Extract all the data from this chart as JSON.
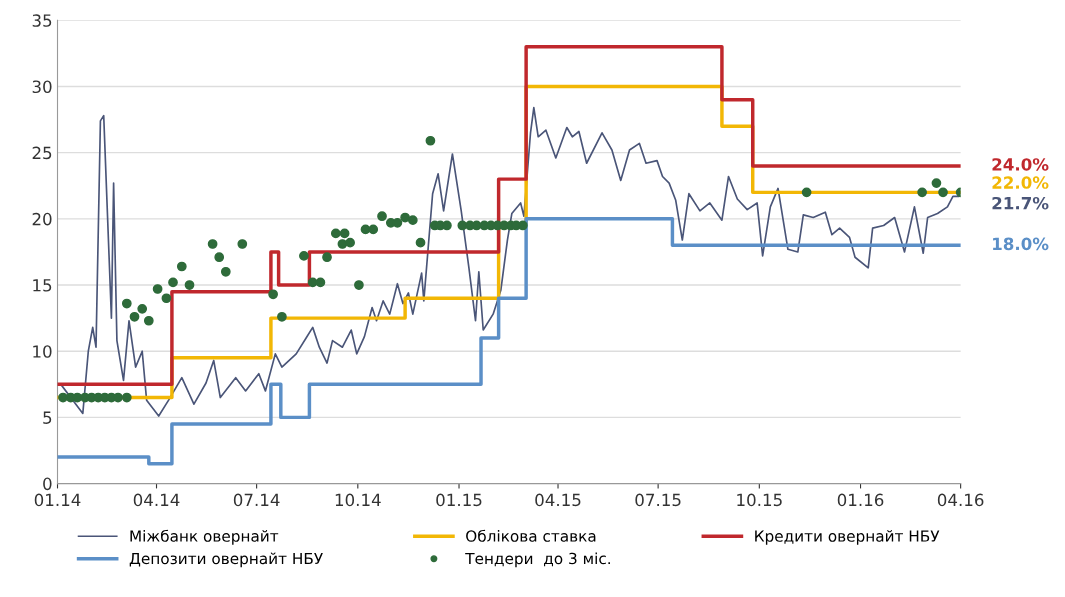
{
  "chart_data": {
    "type": "line",
    "xlim": [
      "2014-01",
      "2016-04"
    ],
    "ylim": [
      0,
      35
    ],
    "xticks": [
      {
        "value": "2014-01",
        "label": "01.14"
      },
      {
        "value": "2014-04",
        "label": "04.14"
      },
      {
        "value": "2014-07",
        "label": "07.14"
      },
      {
        "value": "2014-10",
        "label": "10.14"
      },
      {
        "value": "2015-01",
        "label": "01.15"
      },
      {
        "value": "2015-04",
        "label": "04.15"
      },
      {
        "value": "2015-07",
        "label": "07.15"
      },
      {
        "value": "2015-10",
        "label": "10.15"
      },
      {
        "value": "2016-01",
        "label": "01.16"
      },
      {
        "value": "2016-04",
        "label": "04.16"
      }
    ],
    "yticks": [
      0,
      5,
      10,
      15,
      20,
      25,
      30,
      35
    ],
    "grid": "y",
    "legend": "bottom",
    "series": [
      {
        "name": "Міжбанк овернайт",
        "color": "#4a5578",
        "x": [
          "2014-01-04",
          "2014-01-24",
          "2014-01-29",
          "2014-02-02",
          "2014-02-05",
          "2014-02-09",
          "2014-02-12",
          "2014-02-19",
          "2014-02-21",
          "2014-02-24",
          "2014-03-02",
          "2014-03-07",
          "2014-03-13",
          "2014-03-19",
          "2014-03-23",
          "2014-04-03",
          "2014-04-12",
          "2014-04-24",
          "2014-05-05",
          "2014-05-16",
          "2014-05-23",
          "2014-05-29",
          "2014-06-12",
          "2014-06-21",
          "2014-07-03",
          "2014-07-09",
          "2014-07-18",
          "2014-07-24",
          "2014-08-06",
          "2014-08-15",
          "2014-08-21",
          "2014-08-27",
          "2014-09-03",
          "2014-09-08",
          "2014-09-17",
          "2014-09-25",
          "2014-09-30",
          "2014-10-07",
          "2014-10-14",
          "2014-10-18",
          "2014-10-24",
          "2014-10-30",
          "2014-11-06",
          "2014-11-11",
          "2014-11-16",
          "2014-11-20",
          "2014-11-28",
          "2014-11-30",
          "2014-12-08",
          "2014-12-13",
          "2014-12-18",
          "2014-12-26",
          "2015-01-03",
          "2015-01-10",
          "2015-01-16",
          "2015-01-19",
          "2015-01-23",
          "2015-02-01",
          "2015-02-08",
          "2015-02-14",
          "2015-02-18",
          "2015-02-26",
          "2015-03-01",
          "2015-03-07",
          "2015-03-10",
          "2015-03-14",
          "2015-03-21",
          "2015-03-30",
          "2015-04-09",
          "2015-04-14",
          "2015-04-20",
          "2015-04-27",
          "2015-05-11",
          "2015-05-20",
          "2015-05-28",
          "2015-06-05",
          "2015-06-14",
          "2015-06-20",
          "2015-06-30",
          "2015-07-05",
          "2015-07-11",
          "2015-07-17",
          "2015-07-23",
          "2015-07-29",
          "2015-08-08",
          "2015-08-17",
          "2015-08-28",
          "2015-09-03",
          "2015-09-11",
          "2015-09-20",
          "2015-09-29",
          "2015-10-04",
          "2015-10-11",
          "2015-10-18",
          "2015-10-27",
          "2015-11-05",
          "2015-11-10",
          "2015-11-19",
          "2015-11-30",
          "2015-12-06",
          "2015-12-13",
          "2015-12-22",
          "2015-12-27",
          "2016-01-08",
          "2016-01-12",
          "2016-01-22",
          "2016-02-01",
          "2016-02-10",
          "2016-02-19",
          "2016-02-27",
          "2016-03-02",
          "2016-03-11",
          "2016-03-20",
          "2016-03-25",
          "2016-03-30"
        ],
        "values": [
          7.5,
          5.3,
          10.0,
          11.8,
          10.3,
          27.4,
          27.8,
          12.5,
          22.7,
          10.8,
          7.8,
          12.3,
          8.8,
          10.0,
          6.3,
          5.1,
          6.3,
          8.0,
          6.0,
          7.6,
          9.3,
          6.5,
          8.0,
          7.0,
          8.3,
          7.0,
          9.8,
          8.8,
          9.8,
          11.0,
          11.8,
          10.3,
          9.1,
          10.8,
          10.3,
          11.6,
          9.8,
          11.1,
          13.3,
          12.3,
          13.8,
          12.8,
          15.1,
          13.6,
          14.4,
          12.8,
          15.9,
          13.8,
          21.9,
          23.4,
          20.6,
          24.9,
          20.6,
          16.3,
          12.3,
          16.0,
          11.6,
          12.8,
          14.6,
          18.4,
          20.4,
          21.2,
          20.2,
          26.5,
          28.4,
          26.2,
          26.7,
          24.6,
          26.9,
          26.2,
          26.6,
          24.2,
          26.5,
          25.2,
          22.9,
          25.2,
          25.7,
          24.2,
          24.4,
          23.2,
          22.7,
          21.4,
          18.4,
          21.9,
          20.6,
          21.2,
          19.9,
          23.2,
          21.5,
          20.7,
          21.2,
          17.2,
          20.9,
          22.3,
          17.7,
          17.5,
          20.3,
          20.1,
          20.5,
          18.8,
          19.3,
          18.6,
          17.1,
          16.3,
          19.3,
          19.5,
          20.1,
          17.5,
          20.9,
          17.4,
          20.1,
          20.4,
          20.9,
          21.7,
          21.7
        ]
      },
      {
        "name": "Облікова ставка",
        "type": "step",
        "color": "#f2b705",
        "x": [
          "2014-01-01",
          "2014-04-15",
          "2014-07-14",
          "2014-11-13",
          "2015-02-06",
          "2015-03-03",
          "2015-08-28",
          "2015-09-25",
          "2016-04-01"
        ],
        "values": [
          6.5,
          9.5,
          12.5,
          14,
          19.5,
          30,
          27,
          22,
          22
        ]
      },
      {
        "name": "Кредити овернайт НБУ",
        "type": "step",
        "color": "#c0282d",
        "x": [
          "2014-01-01",
          "2014-04-15",
          "2014-07-14",
          "2014-07-21",
          "2014-08-18",
          "2015-02-06",
          "2015-03-03",
          "2015-08-28",
          "2015-09-25",
          "2016-04-01"
        ],
        "values": [
          7.5,
          14.5,
          17.5,
          15,
          17.5,
          23,
          33,
          29,
          24,
          24
        ]
      },
      {
        "name": "Депозити овернайт НБУ",
        "type": "step",
        "color": "#5b8fc7",
        "x": [
          "2014-01-01",
          "2014-03-25",
          "2014-04-15",
          "2014-07-14",
          "2014-07-23",
          "2014-08-18",
          "2015-01-21",
          "2015-02-06",
          "2015-03-03",
          "2015-07-14",
          "2016-04-01"
        ],
        "values": [
          2,
          1.5,
          4.5,
          7.5,
          5,
          7.5,
          11,
          14,
          20,
          18,
          18
        ]
      },
      {
        "name": "Тендери  до 3 міс.",
        "type": "scatter",
        "color": "#2e6b3a",
        "marker": "circle",
        "x": [
          "2014-01-06",
          "2014-01-13",
          "2014-01-19",
          "2014-01-26",
          "2014-02-01",
          "2014-02-07",
          "2014-02-13",
          "2014-02-19",
          "2014-02-25",
          "2014-03-05",
          "2014-03-05",
          "2014-03-12",
          "2014-03-19",
          "2014-03-25",
          "2014-04-02",
          "2014-04-10",
          "2014-04-16",
          "2014-04-24",
          "2014-05-01",
          "2014-05-22",
          "2014-05-28",
          "2014-06-03",
          "2014-06-18",
          "2014-07-16",
          "2014-07-24",
          "2014-08-13",
          "2014-08-21",
          "2014-08-28",
          "2014-09-03",
          "2014-09-11",
          "2014-09-17",
          "2014-09-19",
          "2014-09-24",
          "2014-10-02",
          "2014-10-08",
          "2014-10-15",
          "2014-10-23",
          "2014-10-31",
          "2014-11-06",
          "2014-11-13",
          "2014-11-20",
          "2014-11-27",
          "2014-12-06",
          "2014-12-10",
          "2014-12-15",
          "2014-12-21",
          "2015-01-04",
          "2015-01-11",
          "2015-01-17",
          "2015-01-24",
          "2015-01-30",
          "2015-02-05",
          "2015-02-11",
          "2015-02-17",
          "2015-02-22",
          "2015-02-28",
          "2015-11-13",
          "2016-02-26",
          "2016-03-10",
          "2016-03-16",
          "2016-04-01"
        ],
        "values": [
          6.5,
          6.5,
          6.5,
          6.5,
          6.5,
          6.5,
          6.5,
          6.5,
          6.5,
          6.5,
          13.6,
          12.6,
          13.2,
          12.3,
          14.7,
          14.0,
          15.2,
          16.4,
          15.0,
          18.1,
          17.1,
          16.0,
          18.1,
          14.3,
          12.6,
          17.2,
          15.2,
          15.2,
          17.1,
          18.9,
          18.1,
          18.9,
          18.2,
          15.0,
          19.2,
          19.2,
          20.2,
          19.7,
          19.7,
          20.1,
          19.9,
          18.2,
          25.9,
          19.5,
          19.5,
          19.5,
          19.5,
          19.5,
          19.5,
          19.5,
          19.5,
          19.5,
          19.5,
          19.5,
          19.5,
          19.5,
          22.0,
          22.0,
          22.7,
          22.0,
          22.0
        ]
      }
    ],
    "annotations": [
      {
        "text": "24.0%",
        "x": "2016-04",
        "y": 24
      },
      {
        "text": "22.0%",
        "x": "2016-04",
        "y": 22
      },
      {
        "text": "21.7%",
        "x": "2016-04",
        "y": 21.7
      },
      {
        "text": "18.0%",
        "x": "2016-04",
        "y": 18
      }
    ]
  }
}
